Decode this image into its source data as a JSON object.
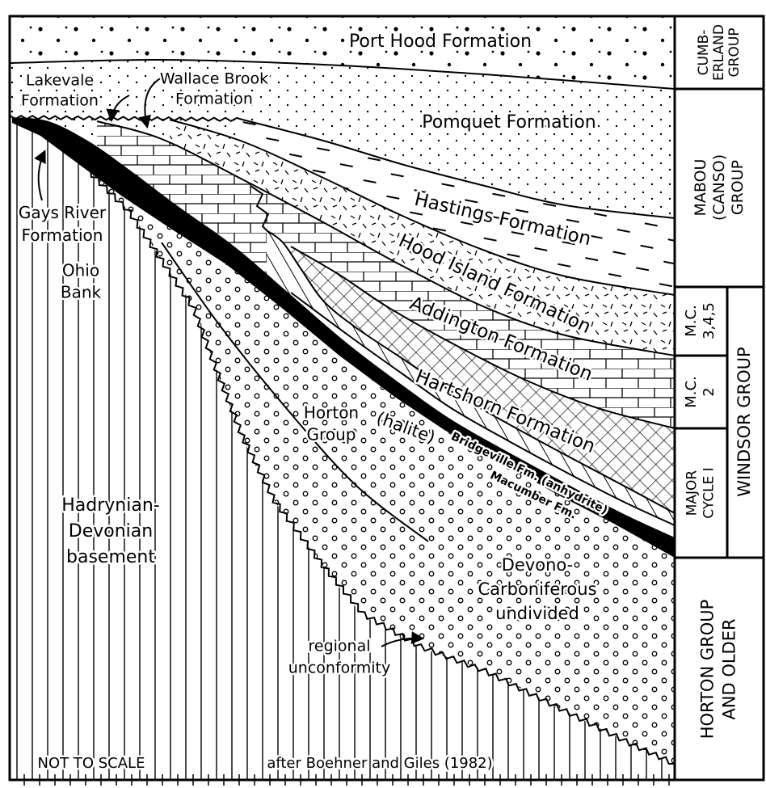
{
  "labels": {
    "port_hood": "Port Hood Formation",
    "lakevale": [
      "Lakevale",
      "Formation"
    ],
    "wallace_brook": [
      "Wallace Brook",
      "Formation"
    ],
    "pomquet": "Pomquet Formation",
    "hastings": "Hastings Formation",
    "hood_island": "Hood Island Formation",
    "addington": "Addington Formation",
    "hartshorn": "Hartshorn Formation",
    "halite": "(halite)",
    "bridgeville": "Bridgeville Fm. (anhydrite)",
    "macumber": "Macumber Fm.",
    "gays_river": [
      "Gays River",
      "Formation"
    ],
    "ohio_bank": [
      "Ohio",
      "Bank"
    ],
    "horton_group": [
      "Horton",
      "Group"
    ],
    "basement": [
      "Hadrynian-",
      "Devonian",
      "basement"
    ],
    "devono": [
      "Devono-",
      "Carboniferous",
      "undivided"
    ],
    "unconformity": [
      "regional",
      "unconformity"
    ]
  },
  "notes": {
    "scale": "NOT TO SCALE",
    "source": "after Boehner and Giles (1982)"
  },
  "groups": {
    "cumberland": [
      "CUMB-",
      "ERLAND",
      "GROUP"
    ],
    "mabou": [
      "MABOU",
      "(CANSO)",
      "GROUP"
    ],
    "mc345": [
      "M.C.",
      "3,4,5"
    ],
    "mc2": [
      "M.C.",
      "2"
    ],
    "major_cycle": [
      "MAJOR",
      "CYCLE I"
    ],
    "windsor": [
      "WINDSOR GROUP"
    ],
    "horton_older": [
      "HORTON GROUP",
      "AND OLDER"
    ]
  }
}
